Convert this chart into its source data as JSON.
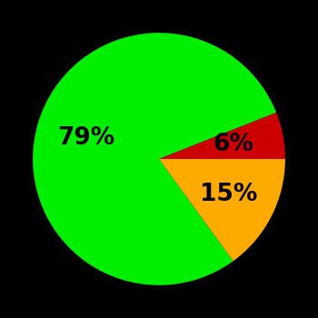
{
  "slices": [
    79,
    6,
    15
  ],
  "colors": [
    "#00ee00",
    "#cc0000",
    "#ffaa00"
  ],
  "labels": [
    "79%",
    "6%",
    "15%"
  ],
  "label_offsets": [
    0.6,
    0.6,
    0.62
  ],
  "background_color": "#000000",
  "startangle": -54,
  "figsize": [
    3.5,
    3.5
  ],
  "dpi": 100,
  "label_fontsize": 19,
  "label_fontweight": "bold"
}
